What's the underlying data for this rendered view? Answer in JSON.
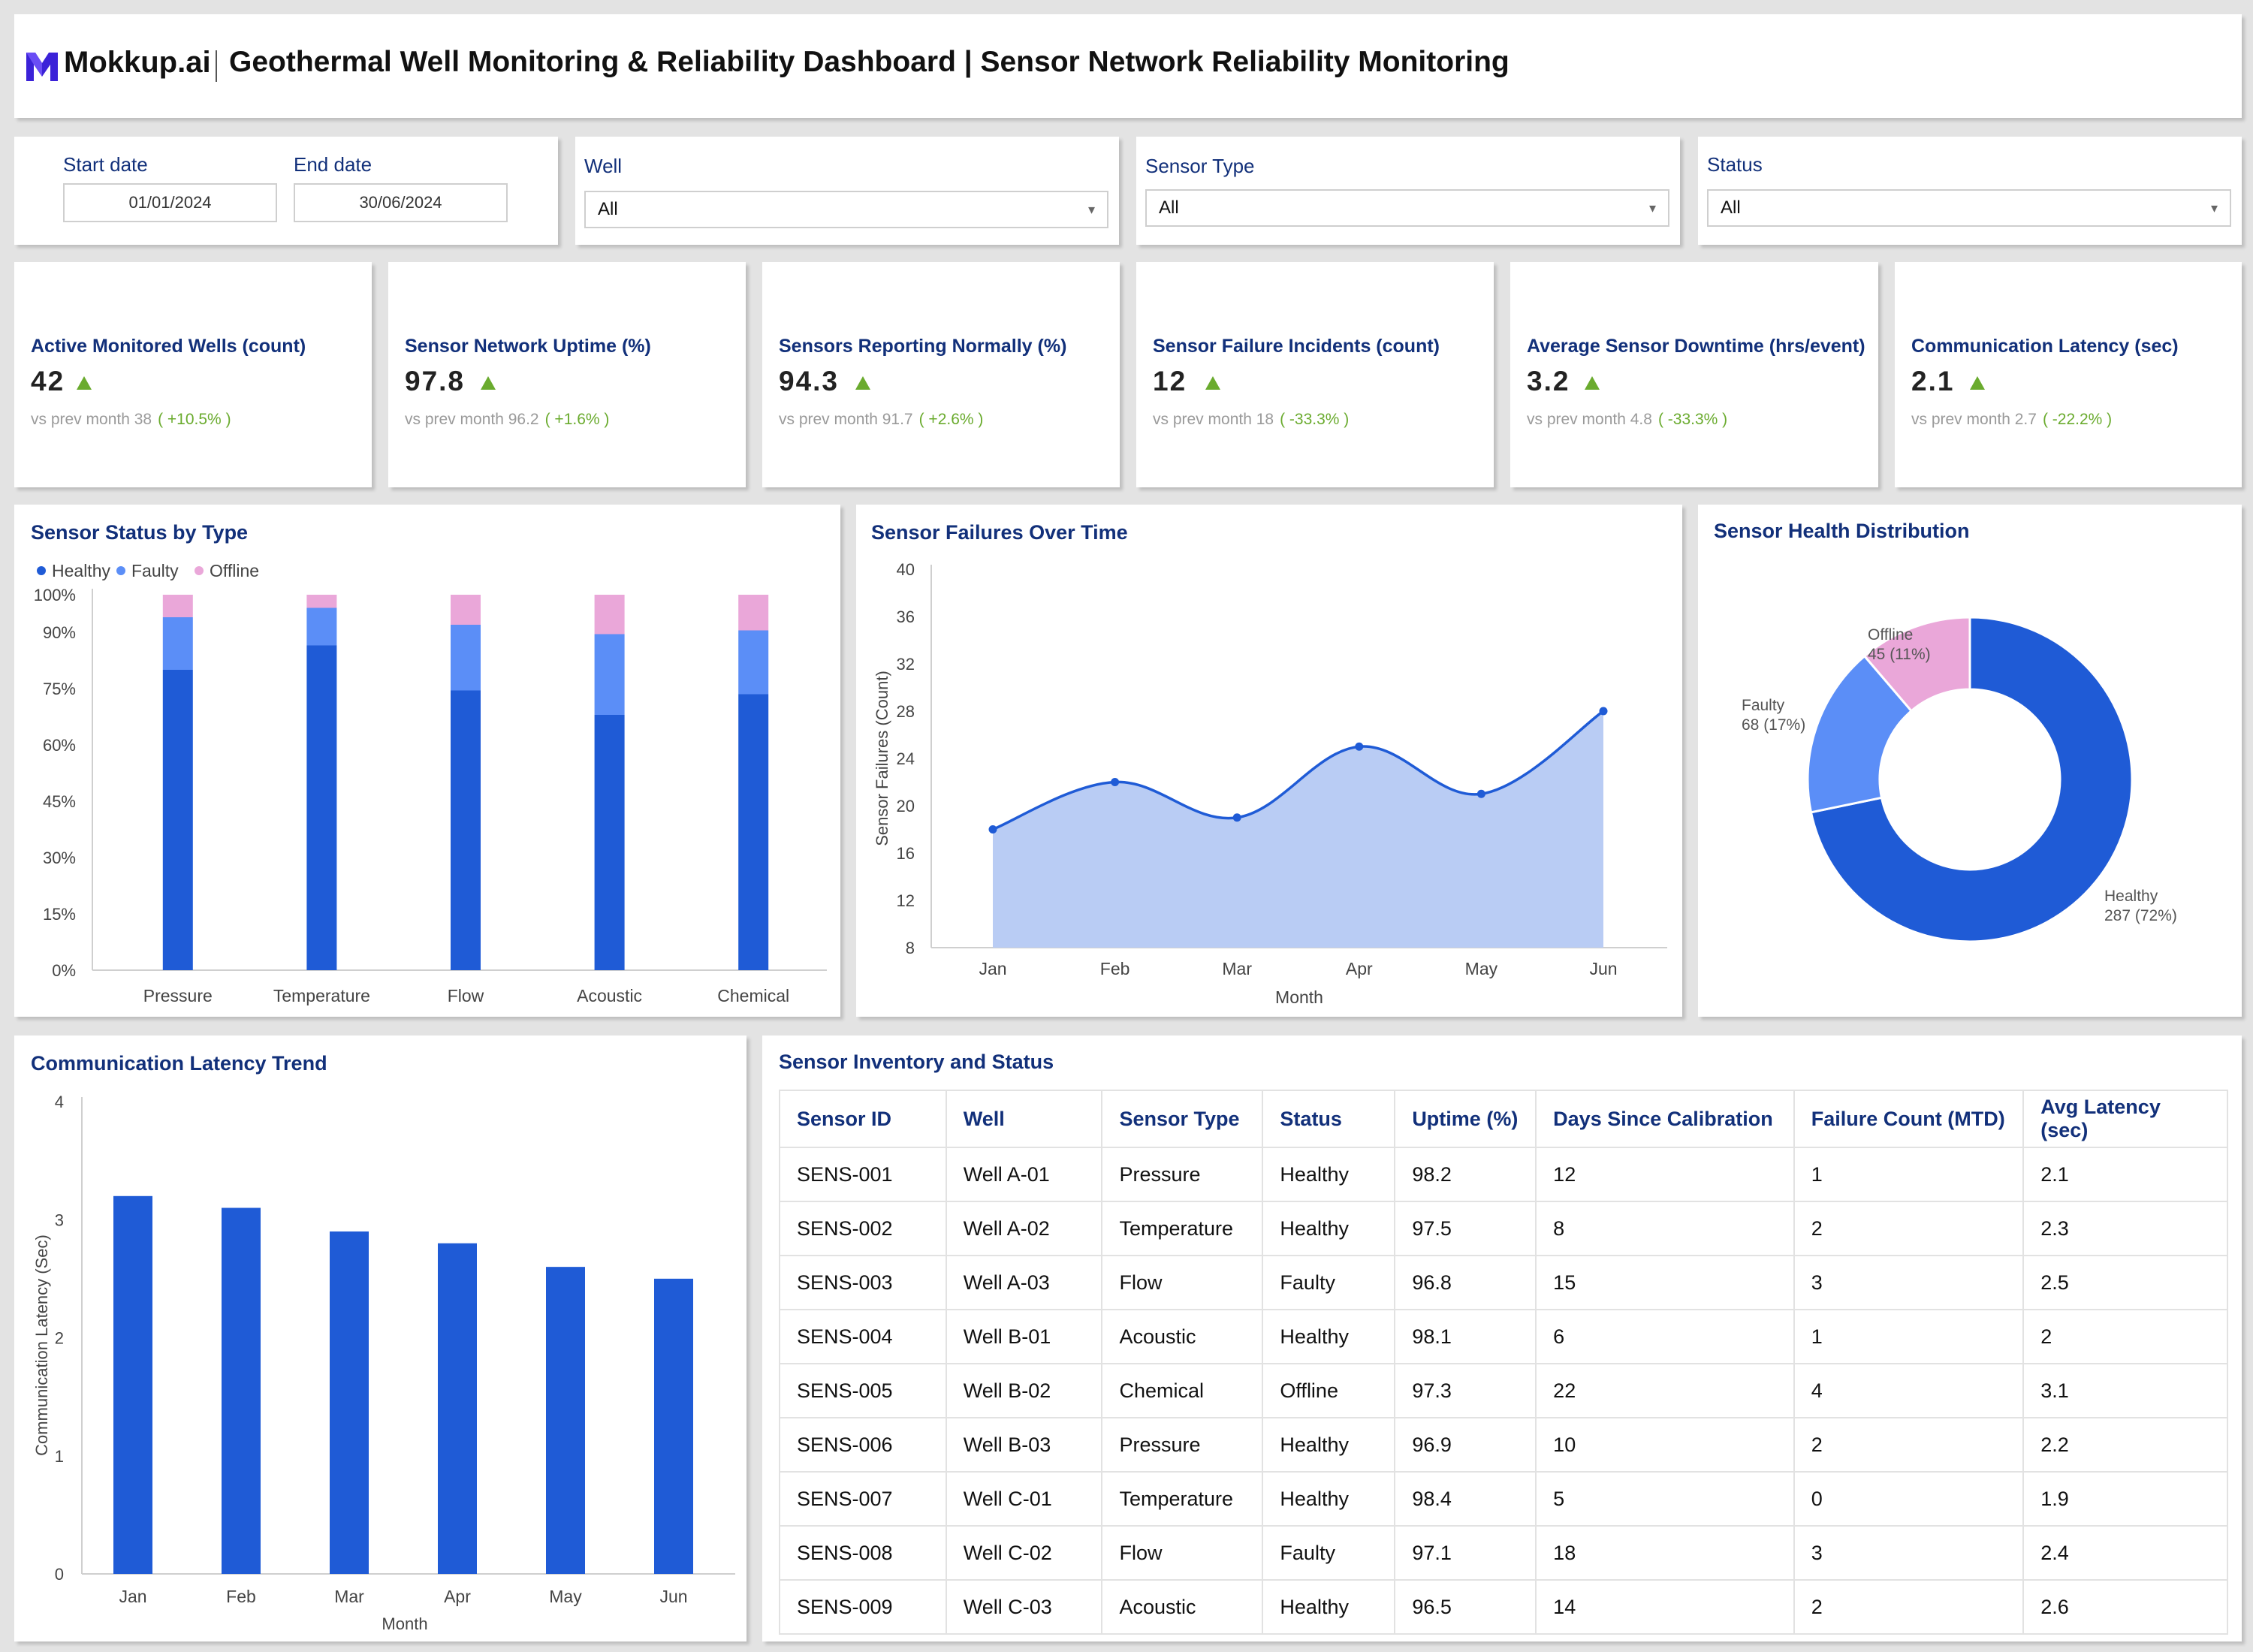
{
  "header": {
    "brand": "Mokkup.ai",
    "title": "Geothermal Well Monitoring & Reliability Dashboard | Sensor Network Reliability Monitoring"
  },
  "filters": {
    "start_label": "Start date",
    "start_value": "01/01/2024",
    "end_label": "End date",
    "end_value": "30/06/2024",
    "well_label": "Well",
    "well_value": "All",
    "sensor_type_label": "Sensor Type",
    "sensor_type_value": "All",
    "status_label": "Status",
    "status_value": "All"
  },
  "kpis": [
    {
      "title": "Active Monitored Wells (count)",
      "value": "42",
      "prev_label": "vs prev month",
      "prev": "38",
      "delta": "( +10.5% )"
    },
    {
      "title": "Sensor Network Uptime (%)",
      "value": "97.8",
      "prev_label": "vs prev month",
      "prev": "96.2",
      "delta": "( +1.6% )"
    },
    {
      "title": "Sensors Reporting Normally (%)",
      "value": "94.3",
      "prev_label": "vs prev month",
      "prev": "91.7",
      "delta": "( +2.6% )"
    },
    {
      "title": "Sensor Failure Incidents (count)",
      "value": "12",
      "prev_label": "vs prev month",
      "prev": "18",
      "delta": "( -33.3% )"
    },
    {
      "title": "Average Sensor Downtime (hrs/event)",
      "value": "3.2",
      "prev_label": "vs prev month",
      "prev": "4.8",
      "delta": "( -33.3% )"
    },
    {
      "title": "Communication Latency (sec)",
      "value": "2.1",
      "prev_label": "vs prev month",
      "prev": "2.7",
      "delta": "( -22.2% )"
    }
  ],
  "colors": {
    "healthy": "#1f5bd6",
    "faulty": "#5b8ef7",
    "offline": "#eaa7d9",
    "area_fill": "#b9ccf4",
    "kpi_up": "#6aab2e",
    "title_blue": "#12307a"
  },
  "charts": {
    "status_by_type": {
      "title": "Sensor Status by Type",
      "chart_data": {
        "type": "bar",
        "stacked": true,
        "categories": [
          "Pressure",
          "Temperature",
          "Flow",
          "Acoustic",
          "Chemical"
        ],
        "series": [
          {
            "name": "Healthy",
            "values": [
              80,
              86.5,
              74.5,
              68,
              73.5
            ]
          },
          {
            "name": "Faulty",
            "values": [
              14,
              10,
              17.5,
              21.5,
              17
            ]
          },
          {
            "name": "Offline",
            "values": [
              6,
              3.5,
              8,
              10.5,
              9.5
            ]
          }
        ],
        "ylim": [
          0,
          100
        ],
        "yticks": [
          "0%",
          "15%",
          "30%",
          "45%",
          "60%",
          "75%",
          "90%",
          "100%"
        ],
        "legend": "top-left"
      }
    },
    "failures_over_time": {
      "title": "Sensor Failures Over Time",
      "chart_data": {
        "type": "area",
        "x": [
          "Jan",
          "Feb",
          "Mar",
          "Apr",
          "May",
          "Jun"
        ],
        "values": [
          18,
          22,
          19,
          25,
          21,
          28
        ],
        "ylim": [
          8,
          40
        ],
        "yticks": [
          "8",
          "12",
          "16",
          "20",
          "24",
          "28",
          "32",
          "36",
          "40"
        ],
        "xlabel": "Month",
        "ylabel": "Sensor Failures (Count)"
      }
    },
    "health_distribution": {
      "title": "Sensor Health Distribution",
      "chart_data": {
        "type": "pie",
        "donut": true,
        "slices": [
          {
            "name": "Healthy",
            "value": 287,
            "label": "287 (72%)"
          },
          {
            "name": "Faulty",
            "value": 68,
            "label": "68 (17%)"
          },
          {
            "name": "Offline",
            "value": 45,
            "label": "45 (11%)"
          }
        ]
      }
    },
    "latency_trend": {
      "title": "Communication Latency Trend",
      "chart_data": {
        "type": "bar",
        "categories": [
          "Jan",
          "Feb",
          "Mar",
          "Apr",
          "May",
          "Jun"
        ],
        "values": [
          3.2,
          3.1,
          2.9,
          2.8,
          2.6,
          2.5
        ],
        "ylim": [
          0,
          4
        ],
        "yticks": [
          "0",
          "1",
          "2",
          "3",
          "4"
        ],
        "xlabel": "Month",
        "ylabel": "Communication Latency (Sec)"
      }
    }
  },
  "table": {
    "title": "Sensor Inventory and Status",
    "columns": [
      "Sensor ID",
      "Well",
      "Sensor Type",
      "Status",
      "Uptime (%)",
      "Days Since Calibration",
      "Failure Count (MTD)",
      "Avg Latency (sec)"
    ],
    "rows": [
      [
        "SENS-001",
        "Well A-01",
        "Pressure",
        "Healthy",
        "98.2",
        "12",
        "1",
        "2.1"
      ],
      [
        "SENS-002",
        "Well A-02",
        "Temperature",
        "Healthy",
        "97.5",
        "8",
        "2",
        "2.3"
      ],
      [
        "SENS-003",
        "Well A-03",
        "Flow",
        "Faulty",
        "96.8",
        "15",
        "3",
        "2.5"
      ],
      [
        "SENS-004",
        "Well B-01",
        "Acoustic",
        "Healthy",
        "98.1",
        "6",
        "1",
        "2"
      ],
      [
        "SENS-005",
        "Well B-02",
        "Chemical",
        "Offline",
        "97.3",
        "22",
        "4",
        "3.1"
      ],
      [
        "SENS-006",
        "Well B-03",
        "Pressure",
        "Healthy",
        "96.9",
        "10",
        "2",
        "2.2"
      ],
      [
        "SENS-007",
        "Well C-01",
        "Temperature",
        "Healthy",
        "98.4",
        "5",
        "0",
        "1.9"
      ],
      [
        "SENS-008",
        "Well C-02",
        "Flow",
        "Faulty",
        "97.1",
        "18",
        "3",
        "2.4"
      ],
      [
        "SENS-009",
        "Well C-03",
        "Acoustic",
        "Healthy",
        "96.5",
        "14",
        "2",
        "2.6"
      ]
    ]
  }
}
